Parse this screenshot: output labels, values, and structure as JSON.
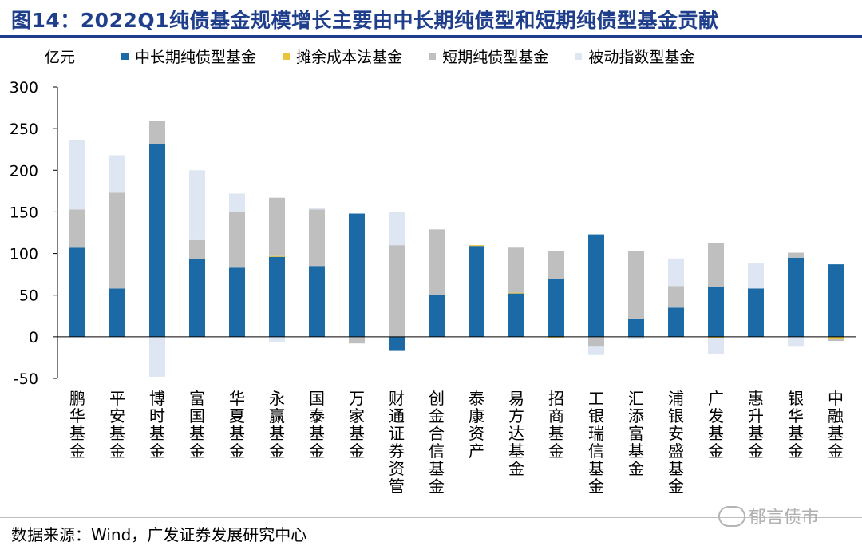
{
  "figure": {
    "title": "图14：2022Q1纯债基金规模增长主要由中长期纯债型和短期纯债型基金贡献",
    "unit": "亿元",
    "source": "数据来源：Wind，广发证券发展研究中心",
    "watermark": "郁言债市"
  },
  "chart_data": {
    "type": "bar",
    "stacked": true,
    "title": "2022Q1纯债基金规模增长主要由中长期纯债型和短期纯债型基金贡献",
    "ylabel": "亿元",
    "ylim": [
      -50,
      300
    ],
    "yticks": [
      -50,
      0,
      50,
      100,
      150,
      200,
      250,
      300
    ],
    "grid": false,
    "legend_position": "top",
    "categories": [
      "鹏华基金",
      "平安基金",
      "博时基金",
      "富国基金",
      "华夏基金",
      "永赢基金",
      "国泰基金",
      "万家基金",
      "财通证券资管",
      "创金合信基金",
      "泰康资产",
      "易方达基金",
      "招商基金",
      "工银瑞信基金",
      "汇添富基金",
      "浦银安盛基金",
      "广发基金",
      "惠升基金",
      "银华基金",
      "中融基金"
    ],
    "series": [
      {
        "name": "中长期纯债型基金",
        "color": "#1b6aa5",
        "values": [
          107,
          58,
          231,
          93,
          83,
          96,
          85,
          148,
          -17,
          50,
          109,
          52,
          69,
          123,
          22,
          35,
          60,
          58,
          95,
          87
        ]
      },
      {
        "name": "摊余成本法基金",
        "color": "#e8c53a",
        "values": [
          0,
          0,
          0,
          0,
          0,
          1,
          0,
          0,
          0,
          0,
          1,
          1,
          -1,
          0,
          0,
          0,
          -2,
          0,
          0,
          -3
        ]
      },
      {
        "name": "短期纯债型基金",
        "color": "#bfbfbf",
        "values": [
          46,
          115,
          28,
          23,
          67,
          70,
          68,
          -8,
          110,
          79,
          0,
          54,
          34,
          -12,
          81,
          26,
          53,
          0,
          6,
          -2
        ]
      },
      {
        "name": "被动指数型基金",
        "color": "#dde6f2",
        "values": [
          83,
          45,
          -48,
          84,
          22,
          -6,
          2,
          0,
          40,
          0,
          0,
          0,
          0,
          -10,
          -3,
          33,
          -19,
          30,
          -12,
          0
        ]
      }
    ]
  }
}
